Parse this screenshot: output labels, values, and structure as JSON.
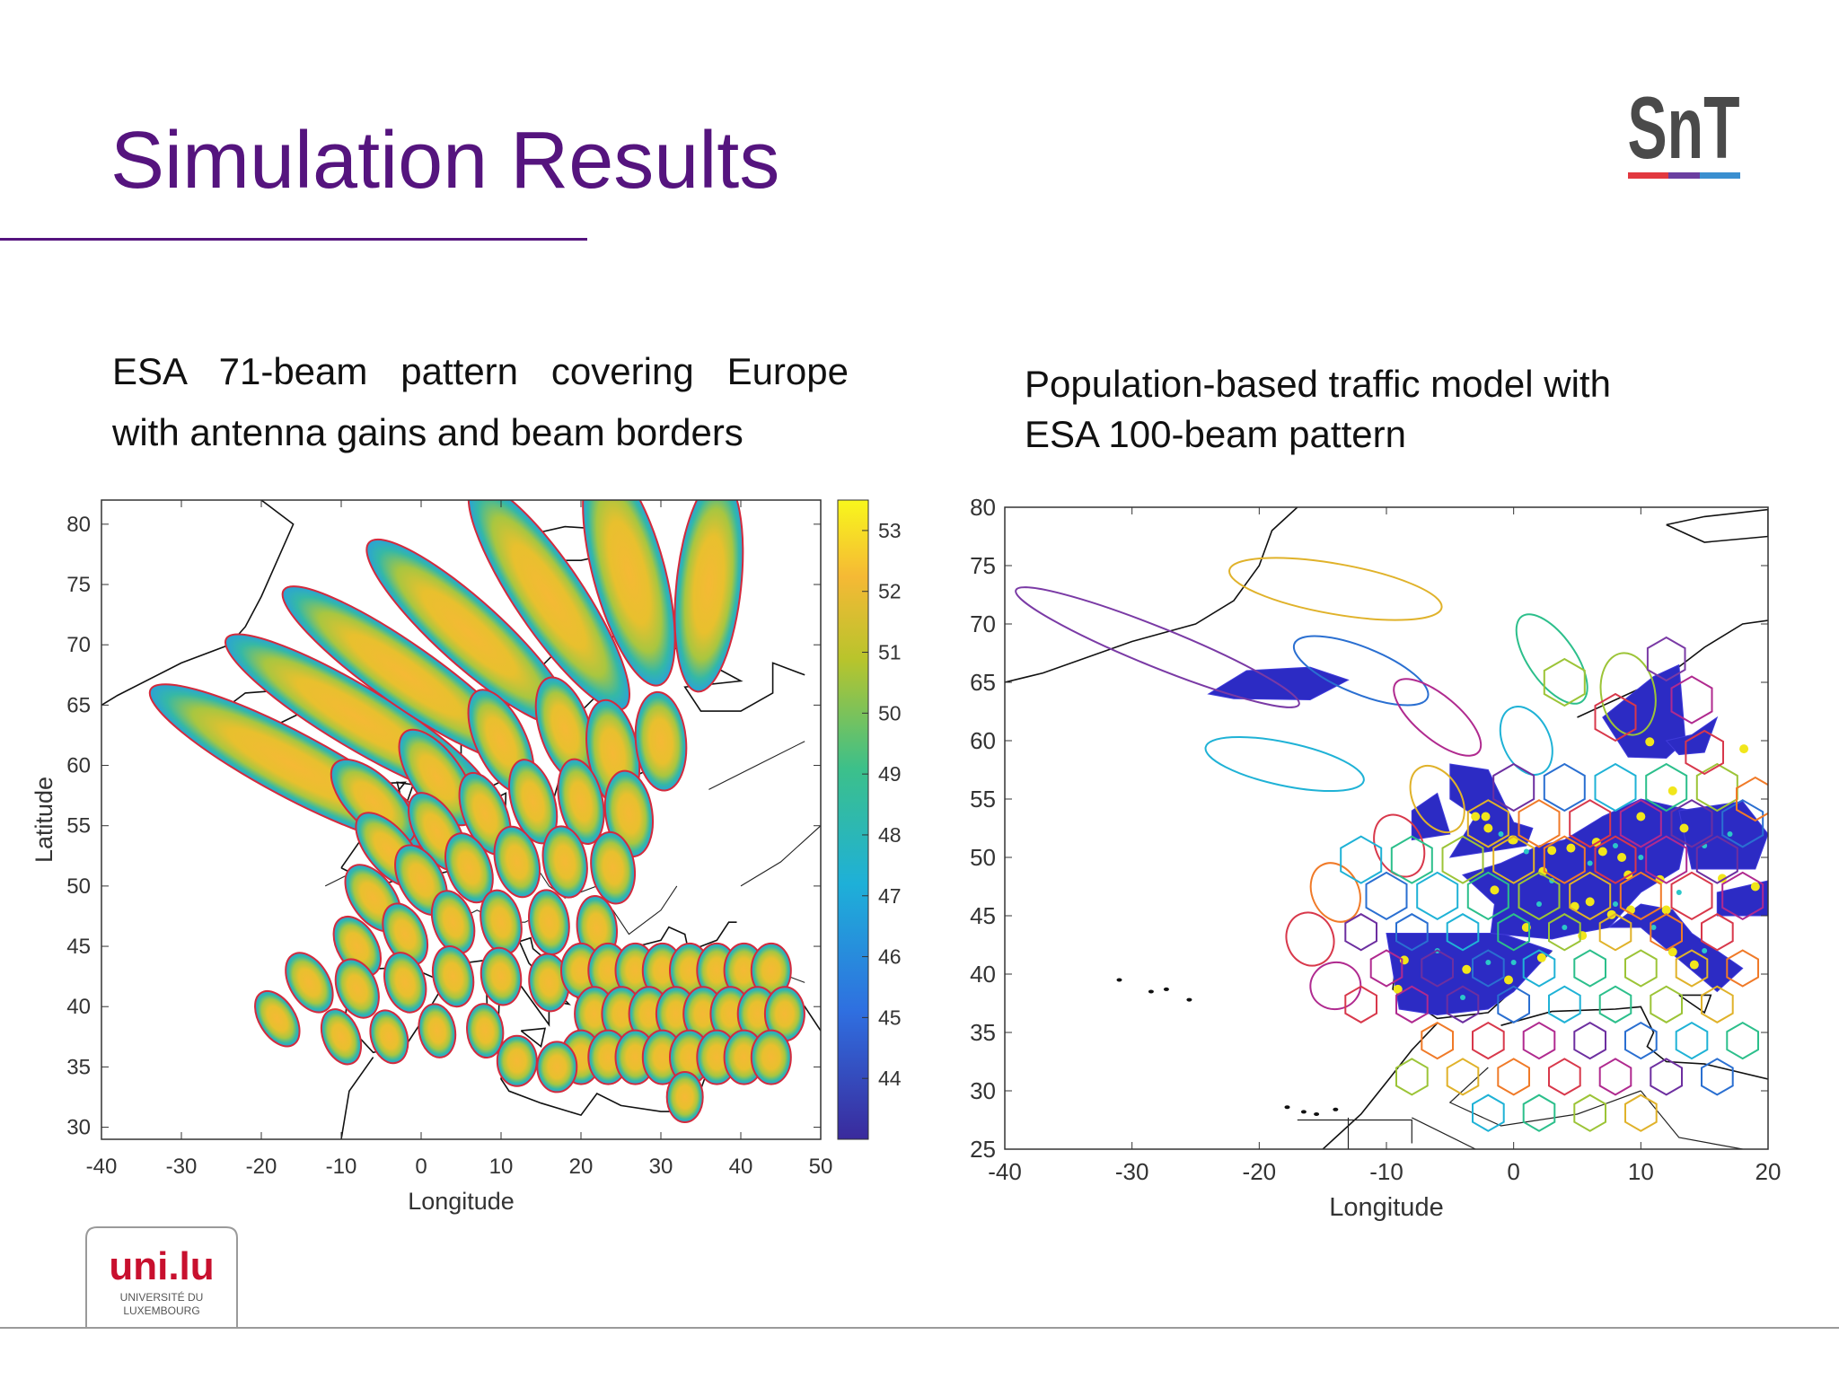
{
  "slide": {
    "title": "Simulation Results",
    "caption_left_lines": [
      "ESA 71-beam pattern covering Europe",
      "with antenna gains and beam borders"
    ],
    "caption_right_lines": [
      "Population-based traffic model with",
      "ESA 100-beam pattern"
    ]
  },
  "logos": {
    "snt_text": "SnT",
    "unilu_text": "uni.lu",
    "unilu_sub1": "UNIVERSITÉ DU",
    "unilu_sub2": "LUXEMBOURG"
  },
  "colors": {
    "title": "#55147e",
    "beam_border": "#d42a3c",
    "snt_red": "#e2383f",
    "snt_purple": "#6b3fa0",
    "snt_blue": "#3a8fd0",
    "unilu_red": "#c8102e",
    "unilu_blue": "#1f5aa6"
  },
  "chart_data": [
    {
      "type": "heatmap",
      "xlabel": "Longitude",
      "ylabel": "Latitude",
      "xlim": [
        -40,
        50
      ],
      "ylim": [
        29,
        82
      ],
      "xticks": [
        -40,
        -30,
        -20,
        -10,
        0,
        10,
        20,
        30,
        40,
        50
      ],
      "yticks": [
        30,
        35,
        40,
        45,
        50,
        55,
        60,
        65,
        70,
        75,
        80
      ],
      "colorbar": {
        "min": 43,
        "max": 53.5,
        "ticks": [
          44,
          45,
          46,
          47,
          48,
          49,
          50,
          51,
          52,
          53
        ]
      },
      "grid": false
    },
    {
      "type": "heatmap",
      "xlabel": "Longitude",
      "ylabel": "",
      "xlim": [
        -40,
        20
      ],
      "ylim": [
        25,
        80
      ],
      "xticks": [
        -40,
        -30,
        -20,
        -10,
        0,
        10,
        20
      ],
      "yticks": [
        25,
        30,
        35,
        40,
        45,
        50,
        55,
        60,
        65,
        70,
        75,
        80
      ],
      "grid": false
    }
  ]
}
